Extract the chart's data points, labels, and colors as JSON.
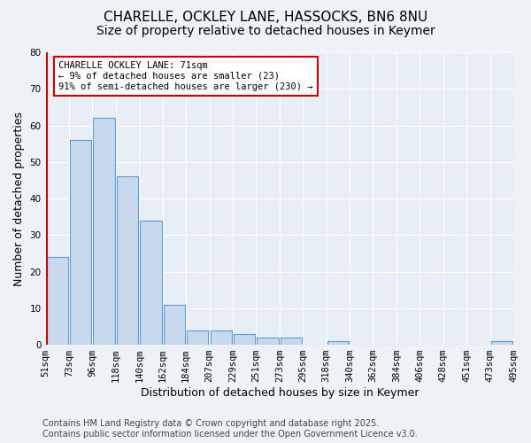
{
  "title1": "CHARELLE, OCKLEY LANE, HASSOCKS, BN6 8NU",
  "title2": "Size of property relative to detached houses in Keymer",
  "xlabel": "Distribution of detached houses by size in Keymer",
  "ylabel": "Number of detached properties",
  "tick_labels": [
    "51sqm",
    "73sqm",
    "96sqm",
    "118sqm",
    "140sqm",
    "162sqm",
    "184sqm",
    "207sqm",
    "229sqm",
    "251sqm",
    "273sqm",
    "295sqm",
    "318sqm",
    "340sqm",
    "362sqm",
    "384sqm",
    "406sqm",
    "428sqm",
    "451sqm",
    "473sqm",
    "495sqm"
  ],
  "bar_values": [
    24,
    56,
    62,
    46,
    34,
    11,
    4,
    4,
    3,
    2,
    2,
    0,
    1,
    0,
    0,
    0,
    0,
    0,
    0,
    1
  ],
  "bar_color": "#c9d9ed",
  "bar_edge_color": "#5b9bd5",
  "highlight_color": "#cc0000",
  "annotation_title": "CHARELLE OCKLEY LANE: 71sqm",
  "annotation_line1": "← 9% of detached houses are smaller (23)",
  "annotation_line2": "91% of semi-detached houses are larger (230) →",
  "ylim": [
    0,
    80
  ],
  "yticks": [
    0,
    10,
    20,
    30,
    40,
    50,
    60,
    70,
    80
  ],
  "bg_color": "#e8eef5",
  "fig_bg_color": "#eef1f6",
  "footer": "Contains HM Land Registry data © Crown copyright and database right 2025.\nContains public sector information licensed under the Open Government Licence v3.0.",
  "title_fontsize": 11,
  "subtitle_fontsize": 10,
  "axis_label_fontsize": 9,
  "tick_fontsize": 7.5,
  "footer_fontsize": 7
}
